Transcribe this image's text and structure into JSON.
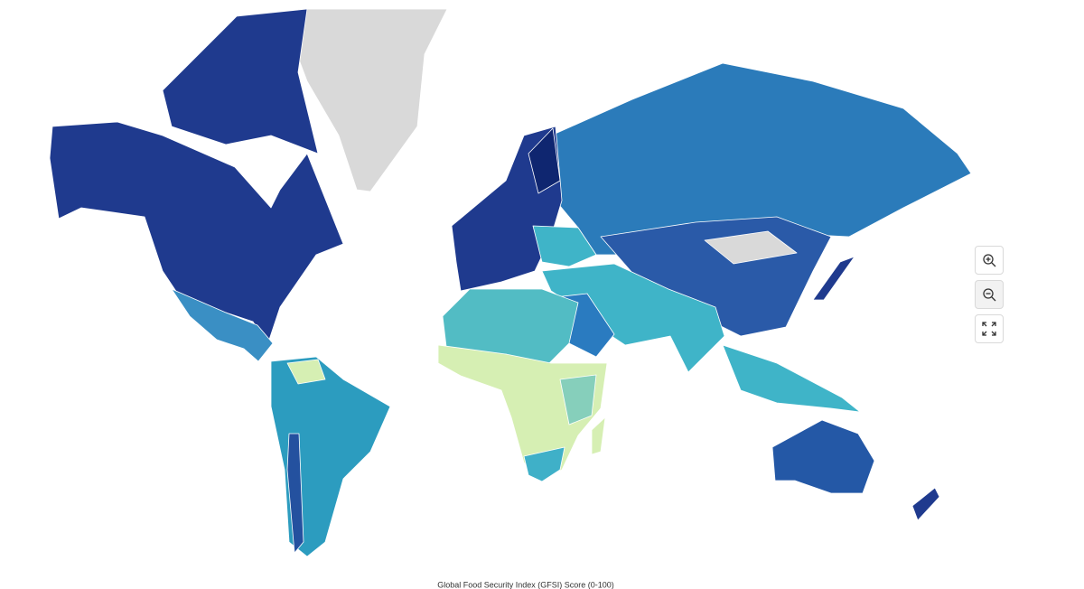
{
  "legend": {
    "title": "Global Food Security Index (GFSI) Score (0-100)"
  }
}
